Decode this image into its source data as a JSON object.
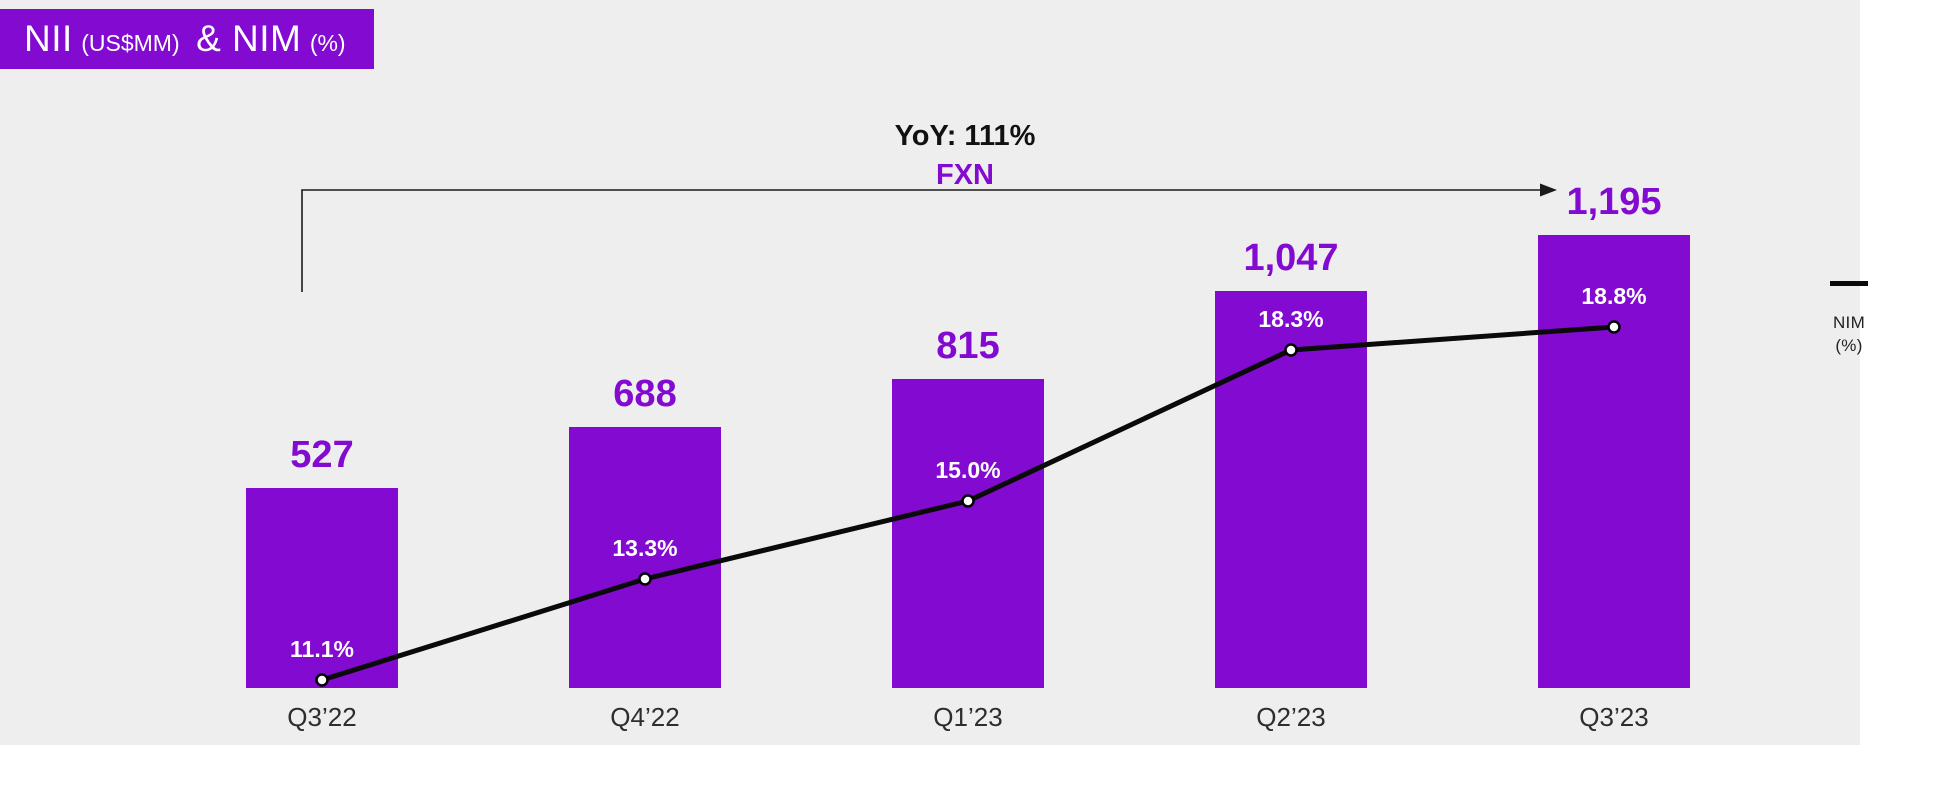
{
  "title": {
    "part1": "NII",
    "part1_sub": "(US$MM)",
    "part2": "& NIM",
    "part2_sub": "(%)"
  },
  "annotation": {
    "yoy": "YoY: 111%",
    "fx": "FXN"
  },
  "legend": {
    "line1": "NIM",
    "line2": "(%)"
  },
  "chart_data": {
    "type": "bar",
    "title": "NII (US$MM) & NIM (%)",
    "categories": [
      "Q3’22",
      "Q4’22",
      "Q1’23",
      "Q2’23",
      "Q3’23"
    ],
    "series": [
      {
        "name": "NII (US$MM)",
        "type": "bar",
        "values": [
          527,
          688,
          815,
          1047,
          1195
        ],
        "value_labels": [
          "527",
          "688",
          "815",
          "1,047",
          "1,195"
        ],
        "color": "#820AD1"
      },
      {
        "name": "NIM (%)",
        "type": "line",
        "values": [
          11.1,
          13.3,
          15.0,
          18.3,
          18.8
        ],
        "value_labels": [
          "11.1%",
          "13.3%",
          "15.0%",
          "18.3%",
          "18.8%"
        ],
        "color": "#0A0A0A"
      }
    ],
    "annotations": [
      "YoY: 111%",
      "FXN"
    ],
    "legend": {
      "entries": [
        "NIM (%)"
      ],
      "position": "right"
    },
    "grid": false,
    "background": "#EFEEEE",
    "ylim_bar": [
      0,
      1195
    ],
    "ylim_line": [
      11.1,
      18.8
    ]
  }
}
